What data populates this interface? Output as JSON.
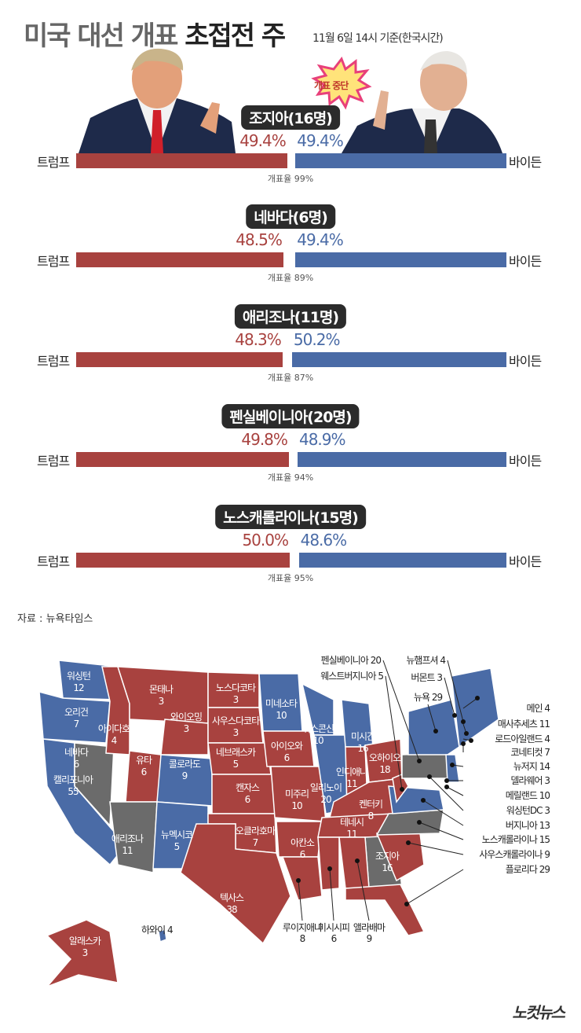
{
  "title": {
    "light": "미국 대선 개표",
    "bold": "초접전 주"
  },
  "as_of": "11월 6일 14시 기준(한국시간)",
  "badge": "개표 중단",
  "candidates": {
    "left": "트럼프",
    "right": "바이든"
  },
  "colors": {
    "trump": "#a8423f",
    "biden": "#4a6ba6",
    "undecided": "#6b6b6b"
  },
  "chart_data": {
    "type": "bar",
    "title": "미국 대선 개표 초접전 주",
    "series_names": [
      "트럼프",
      "바이든"
    ],
    "categories": [
      "조지아(16명)",
      "네바다(6명)",
      "애리조나(11명)",
      "펜실베이니아(20명)",
      "노스캐롤라이나(15명)"
    ],
    "series": [
      {
        "name": "트럼프",
        "values": [
          49.4,
          48.5,
          48.3,
          49.8,
          50.0
        ]
      },
      {
        "name": "바이든",
        "values": [
          49.4,
          49.4,
          50.2,
          48.9,
          48.6
        ]
      }
    ],
    "value_labels": {
      "trump": [
        "49.4%",
        "48.5%",
        "48.3%",
        "49.8%",
        "50.0%"
      ],
      "biden": [
        "49.4%",
        "49.4%",
        "50.2%",
        "48.9%",
        "48.6%"
      ]
    },
    "turnout": [
      "개표율 99%",
      "개표율 89%",
      "개표율 87%",
      "개표율 94%",
      "개표율 95%"
    ]
  },
  "source": "자료 : 뉴욕타임스",
  "map": {
    "states": [
      {
        "name": "워싱턴",
        "ev": "12",
        "w": "b"
      },
      {
        "name": "오리건",
        "ev": "7",
        "w": "b"
      },
      {
        "name": "캘리포니아",
        "ev": "55",
        "w": "b"
      },
      {
        "name": "네바다",
        "ev": "6",
        "w": "g"
      },
      {
        "name": "아이다호",
        "ev": "4",
        "w": "r"
      },
      {
        "name": "몬태나",
        "ev": "3",
        "w": "r"
      },
      {
        "name": "와이오밍",
        "ev": "3",
        "w": "r"
      },
      {
        "name": "유타",
        "ev": "6",
        "w": "r"
      },
      {
        "name": "콜로라도",
        "ev": "9",
        "w": "b"
      },
      {
        "name": "애리조나",
        "ev": "11",
        "w": "g"
      },
      {
        "name": "뉴멕시코",
        "ev": "5",
        "w": "b"
      },
      {
        "name": "노스다코타",
        "ev": "3",
        "w": "r"
      },
      {
        "name": "사우스다코타",
        "ev": "3",
        "w": "r"
      },
      {
        "name": "네브래스카",
        "ev": "5",
        "w": "r"
      },
      {
        "name": "캔자스",
        "ev": "6",
        "w": "r"
      },
      {
        "name": "오클라호마",
        "ev": "7",
        "w": "r"
      },
      {
        "name": "텍사스",
        "ev": "38",
        "w": "r"
      },
      {
        "name": "미네소타",
        "ev": "10",
        "w": "b"
      },
      {
        "name": "아이오와",
        "ev": "6",
        "w": "r"
      },
      {
        "name": "미주리",
        "ev": "10",
        "w": "r"
      },
      {
        "name": "아칸소",
        "ev": "6",
        "w": "r"
      },
      {
        "name": "위스콘신",
        "ev": "10",
        "w": "b"
      },
      {
        "name": "일리노이",
        "ev": "20",
        "w": "b"
      },
      {
        "name": "미시간",
        "ev": "16",
        "w": "b"
      },
      {
        "name": "인디애나",
        "ev": "11",
        "w": "r"
      },
      {
        "name": "오하이오",
        "ev": "18",
        "w": "r"
      },
      {
        "name": "켄터키",
        "ev": "8",
        "w": "r"
      },
      {
        "name": "테네시",
        "ev": "11",
        "w": "r"
      },
      {
        "name": "조지아",
        "ev": "16",
        "w": "g"
      },
      {
        "name": "알래스카",
        "ev": "3",
        "w": "r"
      }
    ],
    "callouts": [
      {
        "name": "루이지애나",
        "ev": "8"
      },
      {
        "name": "미시시피",
        "ev": "6"
      },
      {
        "name": "앨라배마",
        "ev": "9"
      },
      {
        "name": "하와이",
        "ev": "4"
      },
      {
        "name": "메인",
        "ev": "4"
      },
      {
        "name": "매사추세츠",
        "ev": "11"
      },
      {
        "name": "로드아일랜드",
        "ev": "4"
      },
      {
        "name": "코네티컷",
        "ev": "7"
      },
      {
        "name": "뉴저지",
        "ev": "14"
      },
      {
        "name": "델라웨어",
        "ev": "3"
      },
      {
        "name": "메릴랜드",
        "ev": "10"
      },
      {
        "name": "워싱턴DC",
        "ev": "3"
      },
      {
        "name": "버지니아",
        "ev": "13"
      },
      {
        "name": "노스캐롤라이나",
        "ev": "15"
      },
      {
        "name": "사우스캐롤라이나",
        "ev": "9"
      },
      {
        "name": "플로리다",
        "ev": "29"
      },
      {
        "name": "펜실베이니아",
        "ev": "20"
      },
      {
        "name": "웨스트버지니아",
        "ev": "5"
      },
      {
        "name": "뉴햄프셔",
        "ev": "4"
      },
      {
        "name": "버몬트",
        "ev": "3"
      },
      {
        "name": "뉴욕",
        "ev": "29"
      }
    ]
  },
  "logo": "노컷뉴스"
}
